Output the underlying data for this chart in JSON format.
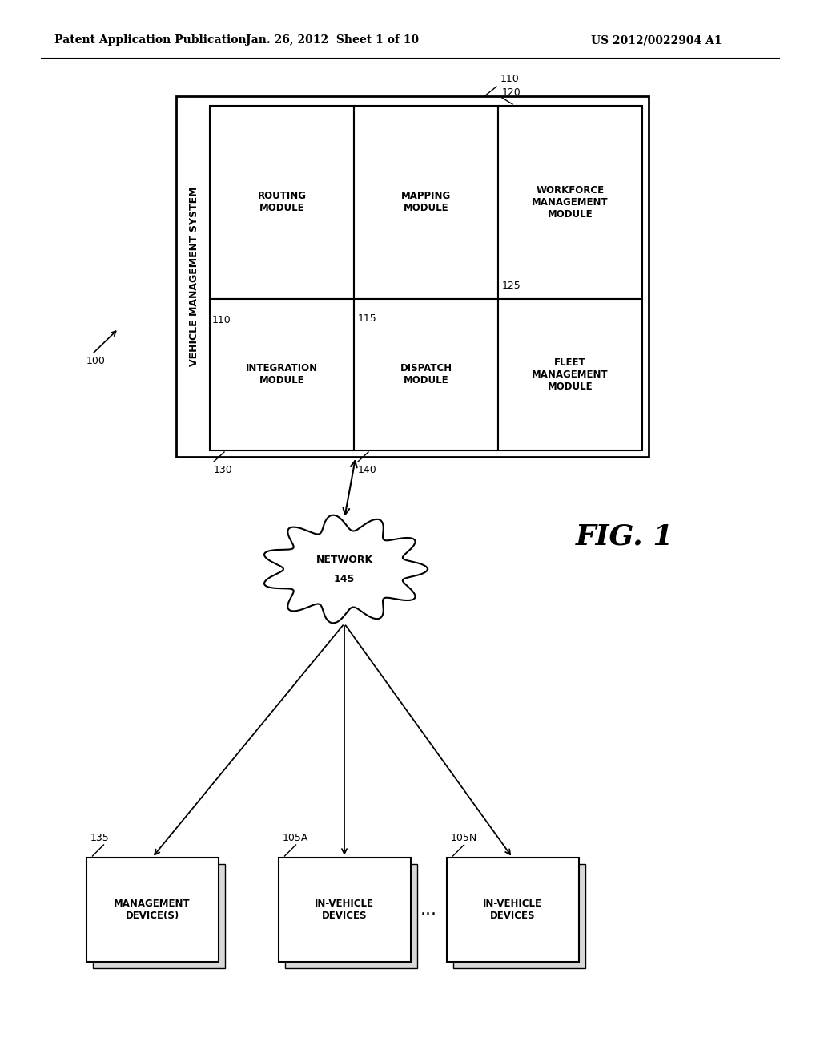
{
  "bg_color": "#ffffff",
  "header_left": "Patent Application Publication",
  "header_mid": "Jan. 26, 2012  Sheet 1 of 10",
  "header_right": "US 2012/0022904 A1",
  "fig_label": "FIG. 1",
  "system_label": "100",
  "outer_box_ref": "110",
  "vms_label": "VEHICLE MANAGEMENT SYSTEM",
  "network_label": "NETWORK",
  "network_ref": "145",
  "mod_routing": "ROUTING\nMODULE",
  "mod_mapping": "MAPPING\nMODULE",
  "mod_workforce": "WORKFORCE\nMANAGEMENT\nMODULE",
  "mod_integration": "INTEGRATION\nMODULE",
  "mod_dispatch": "DISPATCH\nMODULE",
  "mod_fleet": "FLEET\nMANAGEMENT\nMODULE",
  "ref_110": "110",
  "ref_115": "115",
  "ref_120": "120",
  "ref_125": "125",
  "ref_130": "130",
  "ref_140": "140",
  "ref_135": "135",
  "ref_105A": "105A",
  "ref_105N": "105N",
  "dev_mgmt": "MANAGEMENT\nDEVICE(S)",
  "dev_invehicle": "IN-VEHICLE\nDEVICES"
}
